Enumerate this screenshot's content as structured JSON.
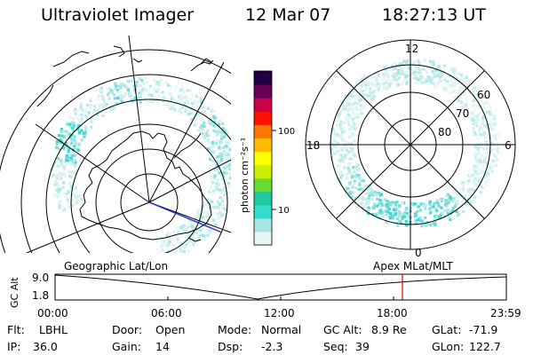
{
  "header": {
    "instrument": "Ultraviolet Imager",
    "date": "12 Mar 07",
    "time": "18:27:13 UT"
  },
  "colorbar": {
    "label": "photon cm⁻²s⁻¹",
    "ticks": [
      "100",
      "10"
    ],
    "scale": "log",
    "colors": [
      "#e8f4f4",
      "#a8e6e6",
      "#33dccc",
      "#22c8a0",
      "#66dd33",
      "#ccee00",
      "#ffff00",
      "#ffbb00",
      "#ff7700",
      "#ff1100",
      "#cc0044",
      "#660055",
      "#220044"
    ]
  },
  "geo_map": {
    "projection_label": "Geographic Lat/Lon",
    "emission_color": "#5ee0d8"
  },
  "polar_map": {
    "projection_label": "Apex  MLat/MLT",
    "mlt_labels": {
      "top": "12",
      "bottom": "0",
      "left": "18",
      "right": "6"
    },
    "lat_labels": [
      "60",
      "70",
      "80"
    ]
  },
  "altitude_plot": {
    "ylabel": "GC Alt",
    "yticks": [
      "9.0",
      "1.8"
    ],
    "xticks": [
      "00:00",
      "06:00",
      "12:00",
      "18:00",
      "23:59"
    ],
    "marker_time": "18:27",
    "marker_color": "#e00000"
  },
  "status": {
    "filter_label": "Flt:",
    "filter_value": "LBHL",
    "ip_label": "IP:",
    "ip_value": "36.0",
    "door_label": "Door:",
    "door_value": "Open",
    "gain_label": "Gain:",
    "gain_value": "14",
    "mode_label": "Mode:",
    "mode_value": "Normal",
    "dsp_label": "Dsp:",
    "dsp_value": "-2.3",
    "gcalt_label": "GC Alt:",
    "gcalt_value": "8.9 Re",
    "seq_label": "Seq:",
    "seq_value": "39",
    "glat_label": "GLat:",
    "glat_value": "-71.9",
    "glon_label": "GLon:",
    "glon_value": "122.7"
  }
}
